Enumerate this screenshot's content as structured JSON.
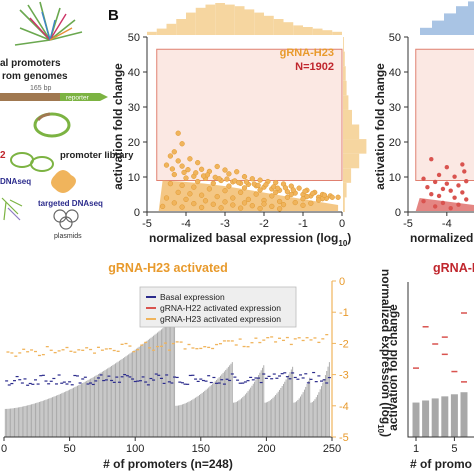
{
  "panel_label_b": "B",
  "schematic": {
    "text_promoters": "al promoters",
    "text_genomes": "rom genomes",
    "text_bp": "165 bp",
    "text_reporter": "reporter",
    "text_library": "promoter library",
    "text_num": "2",
    "text_dnaseq": "DNAseq",
    "text_targeted": "targeted DNAseq",
    "text_plasmids": "plasmids"
  },
  "colors": {
    "h23": "#f0b45c",
    "h23_text": "#e89a2c",
    "h22": "#d9534f",
    "h22_text": "#c0262d",
    "basal": "#2b2b8c",
    "bar": "#a8a8a8",
    "box_fill": "#fbe8e3",
    "box_stroke": "#e08070",
    "hist_h23": "#f6d6a0",
    "hist_h22": "#a9c4e4"
  },
  "chart_data": [
    {
      "type": "scatter",
      "series_label": "gRNA-H23",
      "n_label": "N=1902",
      "xlabel": "normalized basal expression (log",
      "xlabel_sub": "10",
      "xlabel_end": ")",
      "ylabel": "activation fold change",
      "xlim": [
        -5,
        0
      ],
      "ylim": [
        0,
        50
      ],
      "xticks": [
        "-5",
        "-4",
        "-3",
        "-2",
        "-1",
        "0"
      ],
      "yticks": [
        "0",
        "10",
        "20",
        "30",
        "40",
        "50"
      ],
      "highlight_region": {
        "x": [
          -4.75,
          0
        ],
        "y": [
          9,
          46.5
        ]
      },
      "points": [
        [
          -4.2,
          22.5
        ],
        [
          -4.1,
          19.5
        ],
        [
          -4.3,
          17.2
        ],
        [
          -4.4,
          16.0
        ],
        [
          -4.2,
          14.6
        ],
        [
          -3.9,
          15.2
        ],
        [
          -4.5,
          13.4
        ],
        [
          -4.1,
          13.1
        ],
        [
          -3.7,
          14.1
        ],
        [
          -3.6,
          12.2
        ],
        [
          -3.4,
          11.6
        ],
        [
          -3.2,
          13.0
        ],
        [
          -3.0,
          12.0
        ],
        [
          -2.9,
          10.9
        ],
        [
          -2.7,
          11.5
        ],
        [
          -2.5,
          10.1
        ],
        [
          -2.3,
          9.5
        ],
        [
          -2.1,
          9.1
        ],
        [
          -1.9,
          8.7
        ],
        [
          -1.7,
          8.4
        ],
        [
          -1.5,
          8.0
        ],
        [
          -1.3,
          7.4
        ],
        [
          -1.1,
          6.8
        ],
        [
          -0.9,
          6.2
        ],
        [
          -0.7,
          5.6
        ],
        [
          -0.5,
          5.0
        ],
        [
          -0.3,
          4.6
        ],
        [
          -0.1,
          4.2
        ],
        [
          -3.8,
          10.2
        ],
        [
          -3.5,
          9.6
        ],
        [
          -3.1,
          9.0
        ],
        [
          -2.8,
          8.6
        ],
        [
          -2.6,
          8.2
        ],
        [
          -2.4,
          7.9
        ],
        [
          -2.2,
          7.5
        ],
        [
          -2.0,
          7.1
        ],
        [
          -1.8,
          6.6
        ],
        [
          -1.6,
          6.2
        ],
        [
          -1.4,
          5.8
        ],
        [
          -1.2,
          5.4
        ],
        [
          -1.0,
          5.0
        ],
        [
          -0.8,
          4.6
        ],
        [
          -0.6,
          4.2
        ],
        [
          -0.4,
          3.9
        ],
        [
          -4.3,
          10.7
        ],
        [
          -4.0,
          9.7
        ],
        [
          -3.7,
          8.7
        ],
        [
          -3.3,
          8.2
        ],
        [
          -2.9,
          7.4
        ],
        [
          -2.5,
          6.9
        ],
        [
          -2.1,
          6.3
        ],
        [
          -1.7,
          5.6
        ],
        [
          -1.3,
          5.0
        ],
        [
          -0.9,
          4.4
        ],
        [
          -0.5,
          3.8
        ],
        [
          -4.4,
          8.1
        ],
        [
          -4.1,
          7.6
        ],
        [
          -3.8,
          7.1
        ],
        [
          -3.4,
          6.6
        ],
        [
          -3.0,
          6.1
        ],
        [
          -2.6,
          5.6
        ],
        [
          -2.2,
          5.1
        ],
        [
          -1.8,
          4.6
        ],
        [
          -1.4,
          4.2
        ],
        [
          -1.0,
          3.8
        ],
        [
          -0.6,
          3.4
        ],
        [
          -4.2,
          5.6
        ],
        [
          -3.9,
          5.2
        ],
        [
          -3.6,
          4.8
        ],
        [
          -3.2,
          4.4
        ],
        [
          -2.8,
          4.0
        ],
        [
          -2.4,
          3.6
        ],
        [
          -2.0,
          3.3
        ],
        [
          -1.6,
          3.0
        ],
        [
          -1.2,
          2.7
        ],
        [
          -0.8,
          2.5
        ],
        [
          -4.5,
          4.0
        ],
        [
          -4.0,
          3.6
        ],
        [
          -3.5,
          3.2
        ],
        [
          -3.0,
          2.9
        ],
        [
          -2.5,
          2.6
        ],
        [
          -2.0,
          2.3
        ],
        [
          -1.5,
          2.1
        ],
        [
          -1.0,
          1.9
        ],
        [
          -4.3,
          2.6
        ],
        [
          -3.8,
          2.4
        ],
        [
          -3.3,
          2.2
        ],
        [
          -2.8,
          2.0
        ],
        [
          -2.3,
          1.8
        ],
        [
          -1.8,
          1.6
        ],
        [
          -4.6,
          1.6
        ],
        [
          -4.1,
          1.4
        ],
        [
          -3.6,
          1.3
        ],
        [
          -3.1,
          1.2
        ],
        [
          -2.6,
          1.1
        ],
        [
          -2.1,
          1.0
        ],
        [
          -1.6,
          0.9
        ],
        [
          -3.95,
          12.1
        ],
        [
          -3.45,
          10.6
        ],
        [
          -2.95,
          9.4
        ],
        [
          -2.45,
          8.6
        ],
        [
          -1.95,
          7.8
        ],
        [
          -1.45,
          6.9
        ],
        [
          -0.95,
          5.9
        ],
        [
          -0.45,
          4.8
        ],
        [
          -3.75,
          11.2
        ],
        [
          -3.25,
          9.9
        ],
        [
          -2.75,
          8.9
        ],
        [
          -2.25,
          8.0
        ],
        [
          -1.75,
          7.2
        ],
        [
          -1.25,
          6.3
        ],
        [
          -0.75,
          5.3
        ],
        [
          -0.25,
          4.2
        ],
        [
          -4.35,
          12.3
        ],
        [
          -4.05,
          11.3
        ],
        [
          -3.55,
          10.3
        ],
        [
          -3.15,
          9.5
        ],
        [
          -2.65,
          8.4
        ],
        [
          -2.15,
          7.6
        ],
        [
          -1.65,
          6.8
        ]
      ]
    },
    {
      "type": "scatter",
      "ylabel": "activation fold change",
      "xlabel_visible": "normalized ba",
      "xlim": [
        -5,
        -3.3
      ],
      "ylim": [
        0,
        50
      ],
      "xticks": [
        "-5",
        "-4"
      ],
      "yticks": [
        "0",
        "10",
        "20",
        "30",
        "40",
        "50"
      ],
      "points": [
        [
          -4.4,
          15.1
        ],
        [
          -4.0,
          12.8
        ],
        [
          -3.6,
          13.6
        ],
        [
          -4.2,
          10.6
        ],
        [
          -3.8,
          10.1
        ],
        [
          -4.6,
          9.5
        ],
        [
          -4.3,
          8.6
        ],
        [
          -4.0,
          8.1
        ],
        [
          -3.7,
          7.6
        ],
        [
          -3.5,
          8.8
        ],
        [
          -4.5,
          7.1
        ],
        [
          -4.1,
          6.6
        ],
        [
          -3.9,
          6.1
        ],
        [
          -3.6,
          5.6
        ],
        [
          -4.4,
          5.1
        ],
        [
          -4.2,
          4.6
        ],
        [
          -3.8,
          4.1
        ],
        [
          -3.5,
          3.6
        ],
        [
          -4.6,
          3.1
        ],
        [
          -4.1,
          2.6
        ],
        [
          -3.7,
          2.1
        ],
        [
          -4.3,
          1.6
        ],
        [
          -3.9,
          1.1
        ],
        [
          -3.55,
          11.6
        ]
      ]
    },
    {
      "type": "bar",
      "title": "gRNA-H23 activated",
      "xlabel": "# of promoters (n=248)",
      "ylabel": "normalized expression (log",
      "ylabel_sub": "10",
      "ylabel_end": ")",
      "xlim": [
        0,
        250
      ],
      "ylim": [
        -5,
        0
      ],
      "xticks": [
        "0",
        "50",
        "100",
        "150",
        "200",
        "250"
      ],
      "yticks": [
        "0",
        "-1",
        "-2",
        "-3",
        "-4",
        "-5"
      ],
      "legend_position": "top-right",
      "legend": [
        "Basal expression",
        "gRNA-H22 activated expression",
        "gRNA-H23 activated expression"
      ],
      "n_bars": 248
    },
    {
      "type": "scatter",
      "title": "gRNA-H",
      "ylabel": "activation fold change",
      "xlabel": "# of promo",
      "xticks": [
        "1",
        "5"
      ],
      "n_bars": 6,
      "bar_top": 10,
      "h22_points": [
        [
          2,
          32
        ],
        [
          3,
          27
        ],
        [
          4,
          24
        ],
        [
          5,
          19
        ],
        [
          6,
          16
        ],
        [
          1,
          20
        ],
        [
          4,
          29
        ],
        [
          6,
          36
        ]
      ]
    }
  ]
}
